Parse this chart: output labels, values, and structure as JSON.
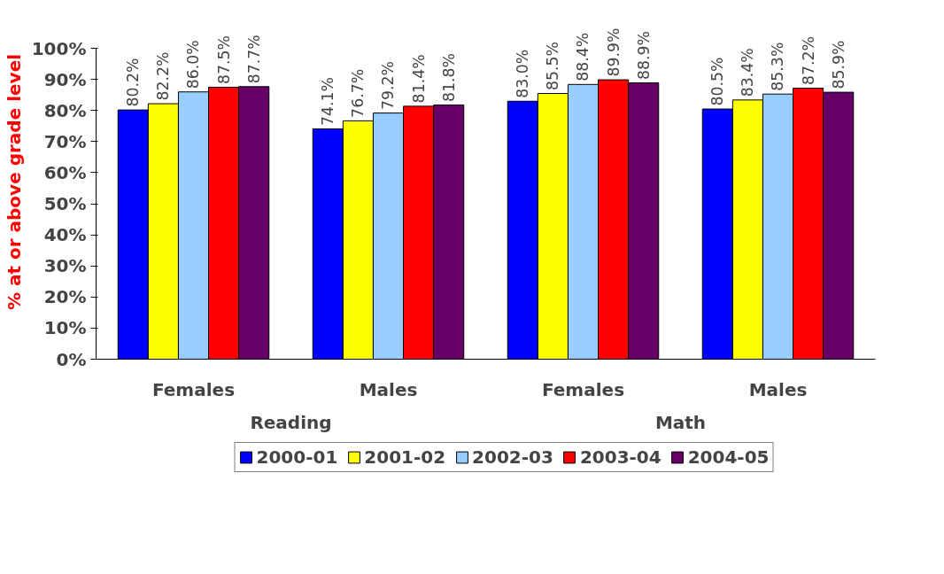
{
  "chart_data": {
    "type": "bar",
    "ylabel": "% at or above grade level",
    "categories": [
      "Females",
      "Males",
      "Females",
      "Males"
    ],
    "annotations": [
      "Reading",
      "Math"
    ],
    "series": [
      {
        "name": "2000-01",
        "color": "#0000ff",
        "values": [
          80.2,
          74.1,
          83.0,
          80.5
        ],
        "value_labels": [
          "80.2%",
          "74.1%",
          "83.0%",
          "80.5%"
        ]
      },
      {
        "name": "2001-02",
        "color": "#ffff00",
        "values": [
          82.2,
          76.7,
          85.5,
          83.4
        ],
        "value_labels": [
          "82.2%",
          "76.7%",
          "85.5%",
          "83.4%"
        ]
      },
      {
        "name": "2002-03",
        "color": "#99ccff",
        "values": [
          86.0,
          79.2,
          88.4,
          85.3
        ],
        "value_labels": [
          "86.0%",
          "79.2%",
          "88.4%",
          "85.3%"
        ]
      },
      {
        "name": "2003-04",
        "color": "#ff0000",
        "values": [
          87.5,
          81.4,
          89.9,
          87.2
        ],
        "value_labels": [
          "87.5%",
          "81.4%",
          "89.9%",
          "87.2%"
        ]
      },
      {
        "name": "2004-05",
        "color": "#660066",
        "values": [
          87.7,
          81.8,
          88.9,
          85.9
        ],
        "value_labels": [
          "87.7%",
          "81.8%",
          "88.9%",
          "85.9%"
        ]
      }
    ],
    "ylim": [
      0,
      100
    ],
    "yticks": [
      {
        "value": 0,
        "label": "0%"
      },
      {
        "value": 10,
        "label": "10%"
      },
      {
        "value": 20,
        "label": "20%"
      },
      {
        "value": 30,
        "label": "30%"
      },
      {
        "value": 40,
        "label": "40%"
      },
      {
        "value": 50,
        "label": "50%"
      },
      {
        "value": 60,
        "label": "60%"
      },
      {
        "value": 70,
        "label": "70%"
      },
      {
        "value": 80,
        "label": "80%"
      },
      {
        "value": 90,
        "label": "90%"
      },
      {
        "value": 100,
        "label": "100%"
      }
    ],
    "legend": "bottom",
    "grid": false
  }
}
